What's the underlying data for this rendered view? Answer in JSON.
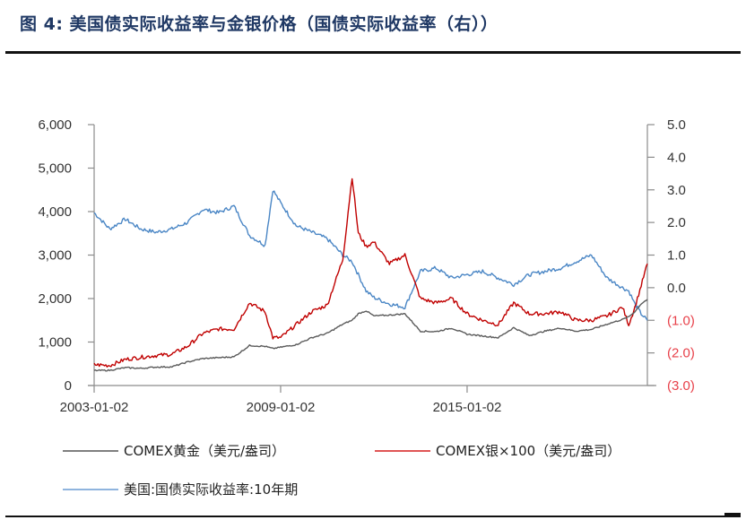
{
  "header": {
    "title": "图 4:  美国债实际收益率与金银价格（国债实际收益率（右））"
  },
  "chart_data": {
    "type": "line",
    "title": "图 4: 美国债实际收益率与金银价格（国债实际收益率（右））",
    "xlabel": "",
    "ylabel_left": "美元/盎司",
    "ylabel_right": "%",
    "x_tick_labels": [
      "2003-01-02",
      "2009-01-02",
      "2015-01-02"
    ],
    "x_range": [
      "2003-01-02",
      "2020-08"
    ],
    "y_left": {
      "range": [
        0,
        6000
      ],
      "ticks": [
        "0",
        "1,000",
        "2,000",
        "3,000",
        "4,000",
        "5,000",
        "6,000"
      ]
    },
    "y_right": {
      "range": [
        -3.0,
        5.0
      ],
      "ticks": [
        "(3.0)",
        "(2.0)",
        "(1.0)",
        "0.0",
        "1.0",
        "2.0",
        "3.0",
        "4.0",
        "5.0"
      ]
    },
    "grid": false,
    "legend_position": "bottom",
    "x": [
      2003.0,
      2003.5,
      2004.0,
      2004.5,
      2005.0,
      2005.5,
      2006.0,
      2006.5,
      2007.0,
      2007.5,
      2008.0,
      2008.5,
      2008.75,
      2009.0,
      2009.5,
      2010.0,
      2010.5,
      2011.0,
      2011.3,
      2011.5,
      2011.75,
      2012.0,
      2012.5,
      2013.0,
      2013.5,
      2014.0,
      2014.5,
      2015.0,
      2015.5,
      2016.0,
      2016.5,
      2017.0,
      2017.5,
      2018.0,
      2018.5,
      2019.0,
      2019.5,
      2020.0,
      2020.2,
      2020.4,
      2020.6,
      2020.8
    ],
    "series": [
      {
        "name": "COMEX黄金（美元/盎司）",
        "axis": "left",
        "color": "#5a5a5a",
        "values": [
          345,
          350,
          410,
          395,
          425,
          430,
          540,
          620,
          640,
          660,
          920,
          900,
          850,
          880,
          940,
          1100,
          1200,
          1410,
          1500,
          1650,
          1720,
          1600,
          1620,
          1650,
          1250,
          1240,
          1320,
          1180,
          1140,
          1100,
          1330,
          1150,
          1250,
          1320,
          1250,
          1290,
          1410,
          1520,
          1580,
          1700,
          1880,
          1980
        ]
      },
      {
        "name": "COMEX银×100（美元/盎司）",
        "axis": "left",
        "color": "#c00000",
        "values": [
          480,
          460,
          600,
          650,
          690,
          720,
          900,
          1200,
          1300,
          1300,
          1900,
          1700,
          1100,
          1100,
          1400,
          1700,
          1850,
          2900,
          4800,
          3500,
          3200,
          3300,
          2800,
          3000,
          2000,
          1900,
          2000,
          1650,
          1500,
          1400,
          1900,
          1650,
          1650,
          1700,
          1500,
          1500,
          1600,
          1800,
          1400,
          1800,
          2300,
          2800
        ]
      },
      {
        "name": "美国:国债实际收益率:10年期",
        "axis": "right",
        "color": "#4a86c5",
        "values": [
          2.3,
          1.8,
          2.1,
          1.8,
          1.7,
          1.8,
          2.0,
          2.4,
          2.3,
          2.5,
          1.6,
          1.3,
          3.0,
          2.6,
          1.9,
          1.7,
          1.5,
          1.0,
          0.8,
          0.4,
          -0.1,
          -0.3,
          -0.5,
          -0.6,
          0.5,
          0.6,
          0.3,
          0.4,
          0.5,
          0.3,
          0.1,
          0.4,
          0.5,
          0.6,
          0.8,
          1.0,
          0.3,
          0.0,
          -0.1,
          -0.5,
          -0.8,
          -1.0
        ]
      }
    ]
  },
  "legend": {
    "items": [
      {
        "label": "COMEX黄金（美元/盎司）",
        "color": "#7f7f7f"
      },
      {
        "label": "COMEX银×100（美元/盎司）",
        "color": "#e05555"
      },
      {
        "label": "美国:国债实际收益率:10年期",
        "color": "#8fb4de"
      }
    ]
  },
  "axis_labels": {
    "left": [
      "6,000",
      "5,000",
      "4,000",
      "3,000",
      "2,000",
      "1,000",
      "0"
    ],
    "right": [
      "5.0",
      "4.0",
      "3.0",
      "2.0",
      "1.0",
      "0.0",
      "(1.0)",
      "(2.0)",
      "(3.0)"
    ],
    "bottom": [
      "2003-01-02",
      "2009-01-02",
      "2015-01-02"
    ]
  },
  "colors": {
    "title": "#1f3864",
    "axis": "#888888",
    "negative_label": "#e8414a"
  }
}
